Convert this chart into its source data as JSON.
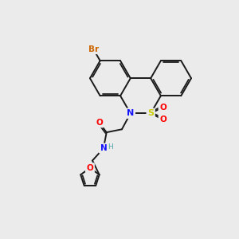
{
  "background_color": "#ebebeb",
  "bond_color": "#1a1a1a",
  "atom_colors": {
    "N": "#1414ff",
    "S": "#cccc00",
    "O": "#ff0000",
    "Br": "#cc6600",
    "H": "#4da6a6"
  },
  "bond_lw": 1.4,
  "figsize": [
    3.0,
    3.0
  ],
  "dpi": 100
}
